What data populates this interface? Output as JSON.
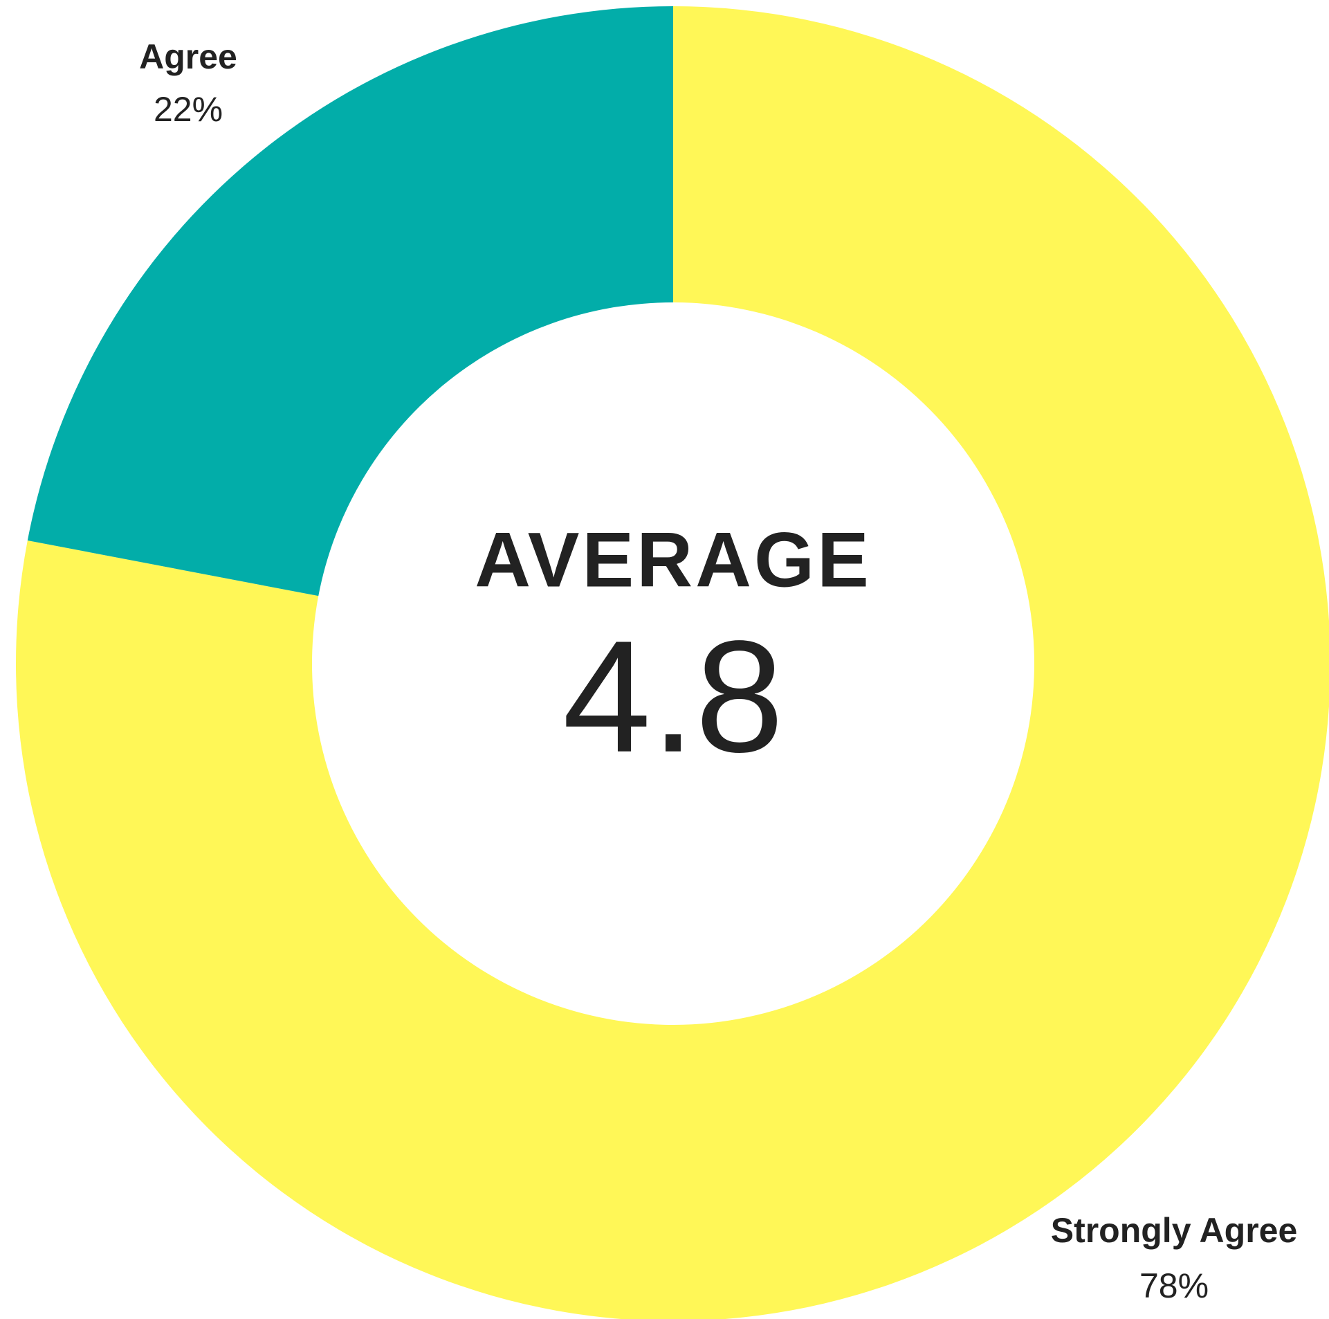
{
  "chart_data": {
    "type": "pie",
    "categories": [
      "Strongly Agree",
      "Agree"
    ],
    "values": [
      78,
      22
    ],
    "value_labels": [
      "78%",
      "22%"
    ],
    "colors": [
      "#FFF757",
      "#02ADA9"
    ],
    "center_label": "AVERAGE",
    "center_value": 4.8
  }
}
